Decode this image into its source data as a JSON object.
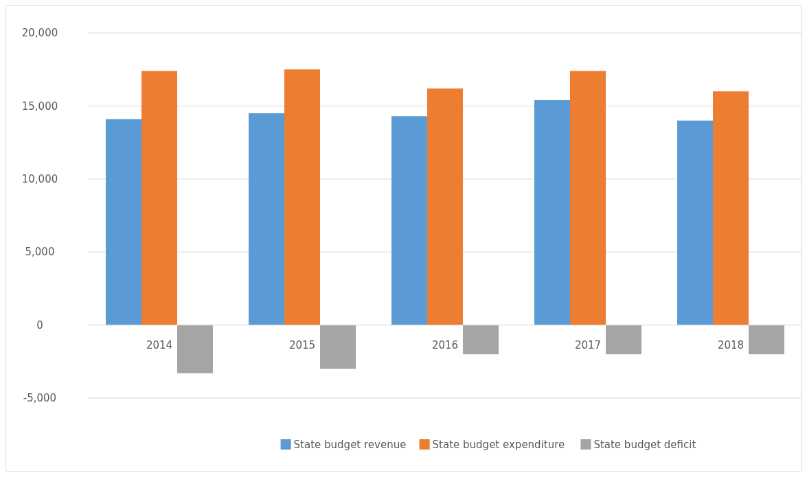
{
  "chart_data": {
    "type": "bar",
    "categories": [
      "2014",
      "2015",
      "2016",
      "2017",
      "2018"
    ],
    "series": [
      {
        "name": "State budget revenue",
        "color": "#5b9bd5",
        "values": [
          14100,
          14500,
          14300,
          15400,
          14000
        ]
      },
      {
        "name": "State budget expenditure",
        "color": "#ed7d31",
        "values": [
          17400,
          17500,
          16200,
          17400,
          16000
        ]
      },
      {
        "name": "State budget deficit",
        "color": "#a5a5a5",
        "values": [
          -3300,
          -3000,
          -2000,
          -2000,
          -2000
        ]
      }
    ],
    "ylim": [
      -5000,
      20000
    ],
    "yticks": [
      {
        "value": -5000,
        "label": "-5,000"
      },
      0,
      {
        "value": 5000,
        "label": "5,000"
      },
      {
        "value": 10000,
        "label": "10,000"
      },
      {
        "value": 15000,
        "label": "15,000"
      },
      {
        "value": 20000,
        "label": "20,000"
      }
    ],
    "grid": "y",
    "legend": "bottom"
  }
}
